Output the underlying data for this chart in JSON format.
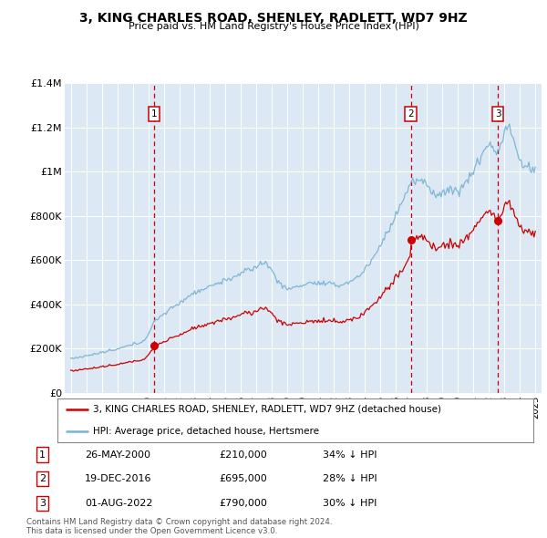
{
  "title": "3, KING CHARLES ROAD, SHENLEY, RADLETT, WD7 9HZ",
  "subtitle": "Price paid vs. HM Land Registry's House Price Index (HPI)",
  "legend_line1": "3, KING CHARLES ROAD, SHENLEY, RADLETT, WD7 9HZ (detached house)",
  "legend_line2": "HPI: Average price, detached house, Hertsmere",
  "footer1": "Contains HM Land Registry data © Crown copyright and database right 2024.",
  "footer2": "This data is licensed under the Open Government Licence v3.0.",
  "transactions": [
    {
      "num": 1,
      "date": "26-MAY-2000",
      "price": 210000,
      "hpi_pct": "34% ↓ HPI",
      "x": 2000.38
    },
    {
      "num": 2,
      "date": "19-DEC-2016",
      "price": 695000,
      "hpi_pct": "28% ↓ HPI",
      "x": 2016.96
    },
    {
      "num": 3,
      "date": "01-AUG-2022",
      "price": 790000,
      "hpi_pct": "30% ↓ HPI",
      "x": 2022.58
    }
  ],
  "hpi_color": "#7ab3d4",
  "price_color": "#cc0000",
  "vline_color": "#cc0000",
  "plot_bg": "#dce9f5",
  "ylim": [
    0,
    1400000
  ],
  "xlim_start": 1994.6,
  "xlim_end": 2025.4,
  "yticks": [
    0,
    200000,
    400000,
    600000,
    800000,
    1000000,
    1200000,
    1400000
  ],
  "ytick_labels": [
    "£0",
    "£200K",
    "£400K",
    "£600K",
    "£800K",
    "£1M",
    "£1.2M",
    "£1.4M"
  ],
  "xticks": [
    1995,
    1996,
    1997,
    1998,
    1999,
    2000,
    2001,
    2002,
    2003,
    2004,
    2005,
    2006,
    2007,
    2008,
    2009,
    2010,
    2011,
    2012,
    2013,
    2014,
    2015,
    2016,
    2017,
    2018,
    2019,
    2020,
    2021,
    2022,
    2023,
    2024,
    2025
  ]
}
